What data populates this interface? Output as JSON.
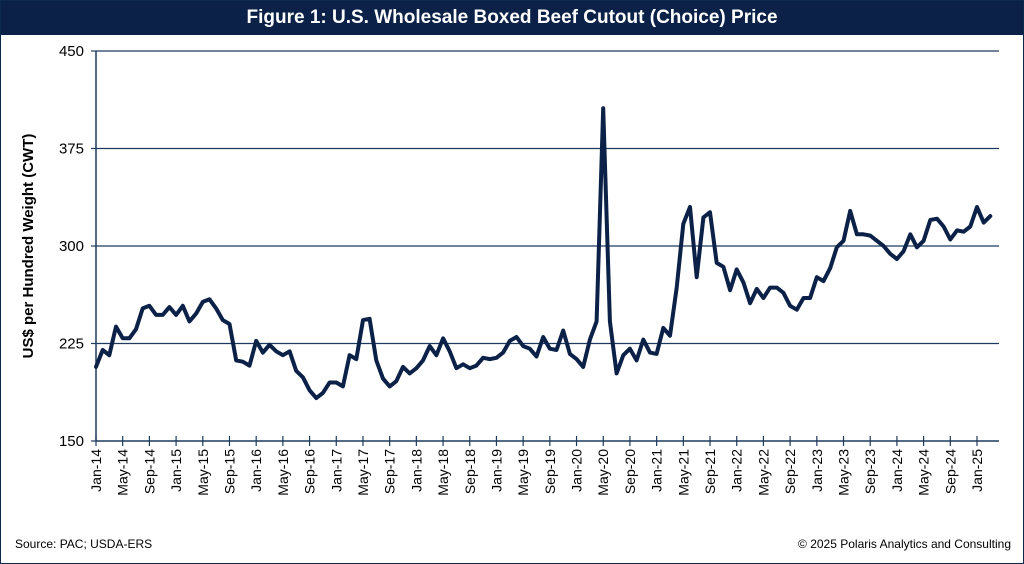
{
  "footer": {
    "source": "Source: PAC; USDA-ERS",
    "copyright": "© 2025 Polaris Analytics and Consulting"
  },
  "colors": {
    "title_bg": "#0b2147",
    "line": "#0b2147",
    "grid": "#1f3a5f"
  },
  "chart_data": {
    "type": "line",
    "title": "Figure 1: U.S. Wholesale Boxed Beef Cutout (Choice) Price",
    "xlabel": "",
    "ylabel": "US$ per Hundred Weight (CWT)",
    "ylim": [
      150,
      450
    ],
    "yticks": [
      150,
      225,
      300,
      375,
      450
    ],
    "grid": "horizontal",
    "legend": "none",
    "x_start": "Jan-14",
    "x_frequency": "monthly",
    "xtick_every_months": 4,
    "xticks": [
      "Jan-14",
      "May-14",
      "Sep-14",
      "Jan-15",
      "May-15",
      "Sep-15",
      "Jan-16",
      "May-16",
      "Sep-16",
      "Jan-17",
      "May-17",
      "Sep-17",
      "Jan-18",
      "May-18",
      "Sep-18",
      "Jan-19",
      "May-19",
      "Sep-19",
      "Jan-20",
      "May-20",
      "Sep-20",
      "Jan-21",
      "May-21",
      "Sep-21",
      "Jan-22",
      "May-22",
      "Sep-22",
      "Jan-23",
      "May-23",
      "Sep-23",
      "Jan-24",
      "May-24",
      "Sep-24",
      "Jan-25"
    ],
    "series": [
      {
        "name": "Choice Boxed Beef Cutout",
        "values": [
          207,
          220,
          216,
          238,
          229,
          229,
          236,
          252,
          254,
          247,
          247,
          253,
          247,
          254,
          242,
          248,
          257,
          259,
          252,
          243,
          240,
          212,
          211,
          208,
          227,
          218,
          224,
          219,
          216,
          219,
          204,
          199,
          189,
          183,
          187,
          195,
          195,
          192,
          216,
          213,
          243,
          244,
          212,
          198,
          192,
          196,
          207,
          202,
          206,
          212,
          223,
          216,
          229,
          219,
          206,
          209,
          206,
          208,
          214,
          213,
          214,
          218,
          227,
          230,
          223,
          221,
          215,
          230,
          221,
          220,
          235,
          217,
          213,
          207,
          228,
          242,
          406,
          242,
          202,
          216,
          221,
          212,
          228,
          218,
          217,
          237,
          231,
          268,
          317,
          330,
          276,
          322,
          326,
          287,
          284,
          266,
          282,
          272,
          256,
          267,
          260,
          268,
          268,
          264,
          254,
          251,
          260,
          260,
          276,
          273,
          283,
          299,
          304,
          327,
          309,
          309,
          308,
          304,
          300,
          294,
          290,
          296,
          309,
          299,
          304,
          320,
          321,
          315,
          305,
          312,
          311,
          315,
          330,
          318,
          323
        ]
      }
    ]
  }
}
